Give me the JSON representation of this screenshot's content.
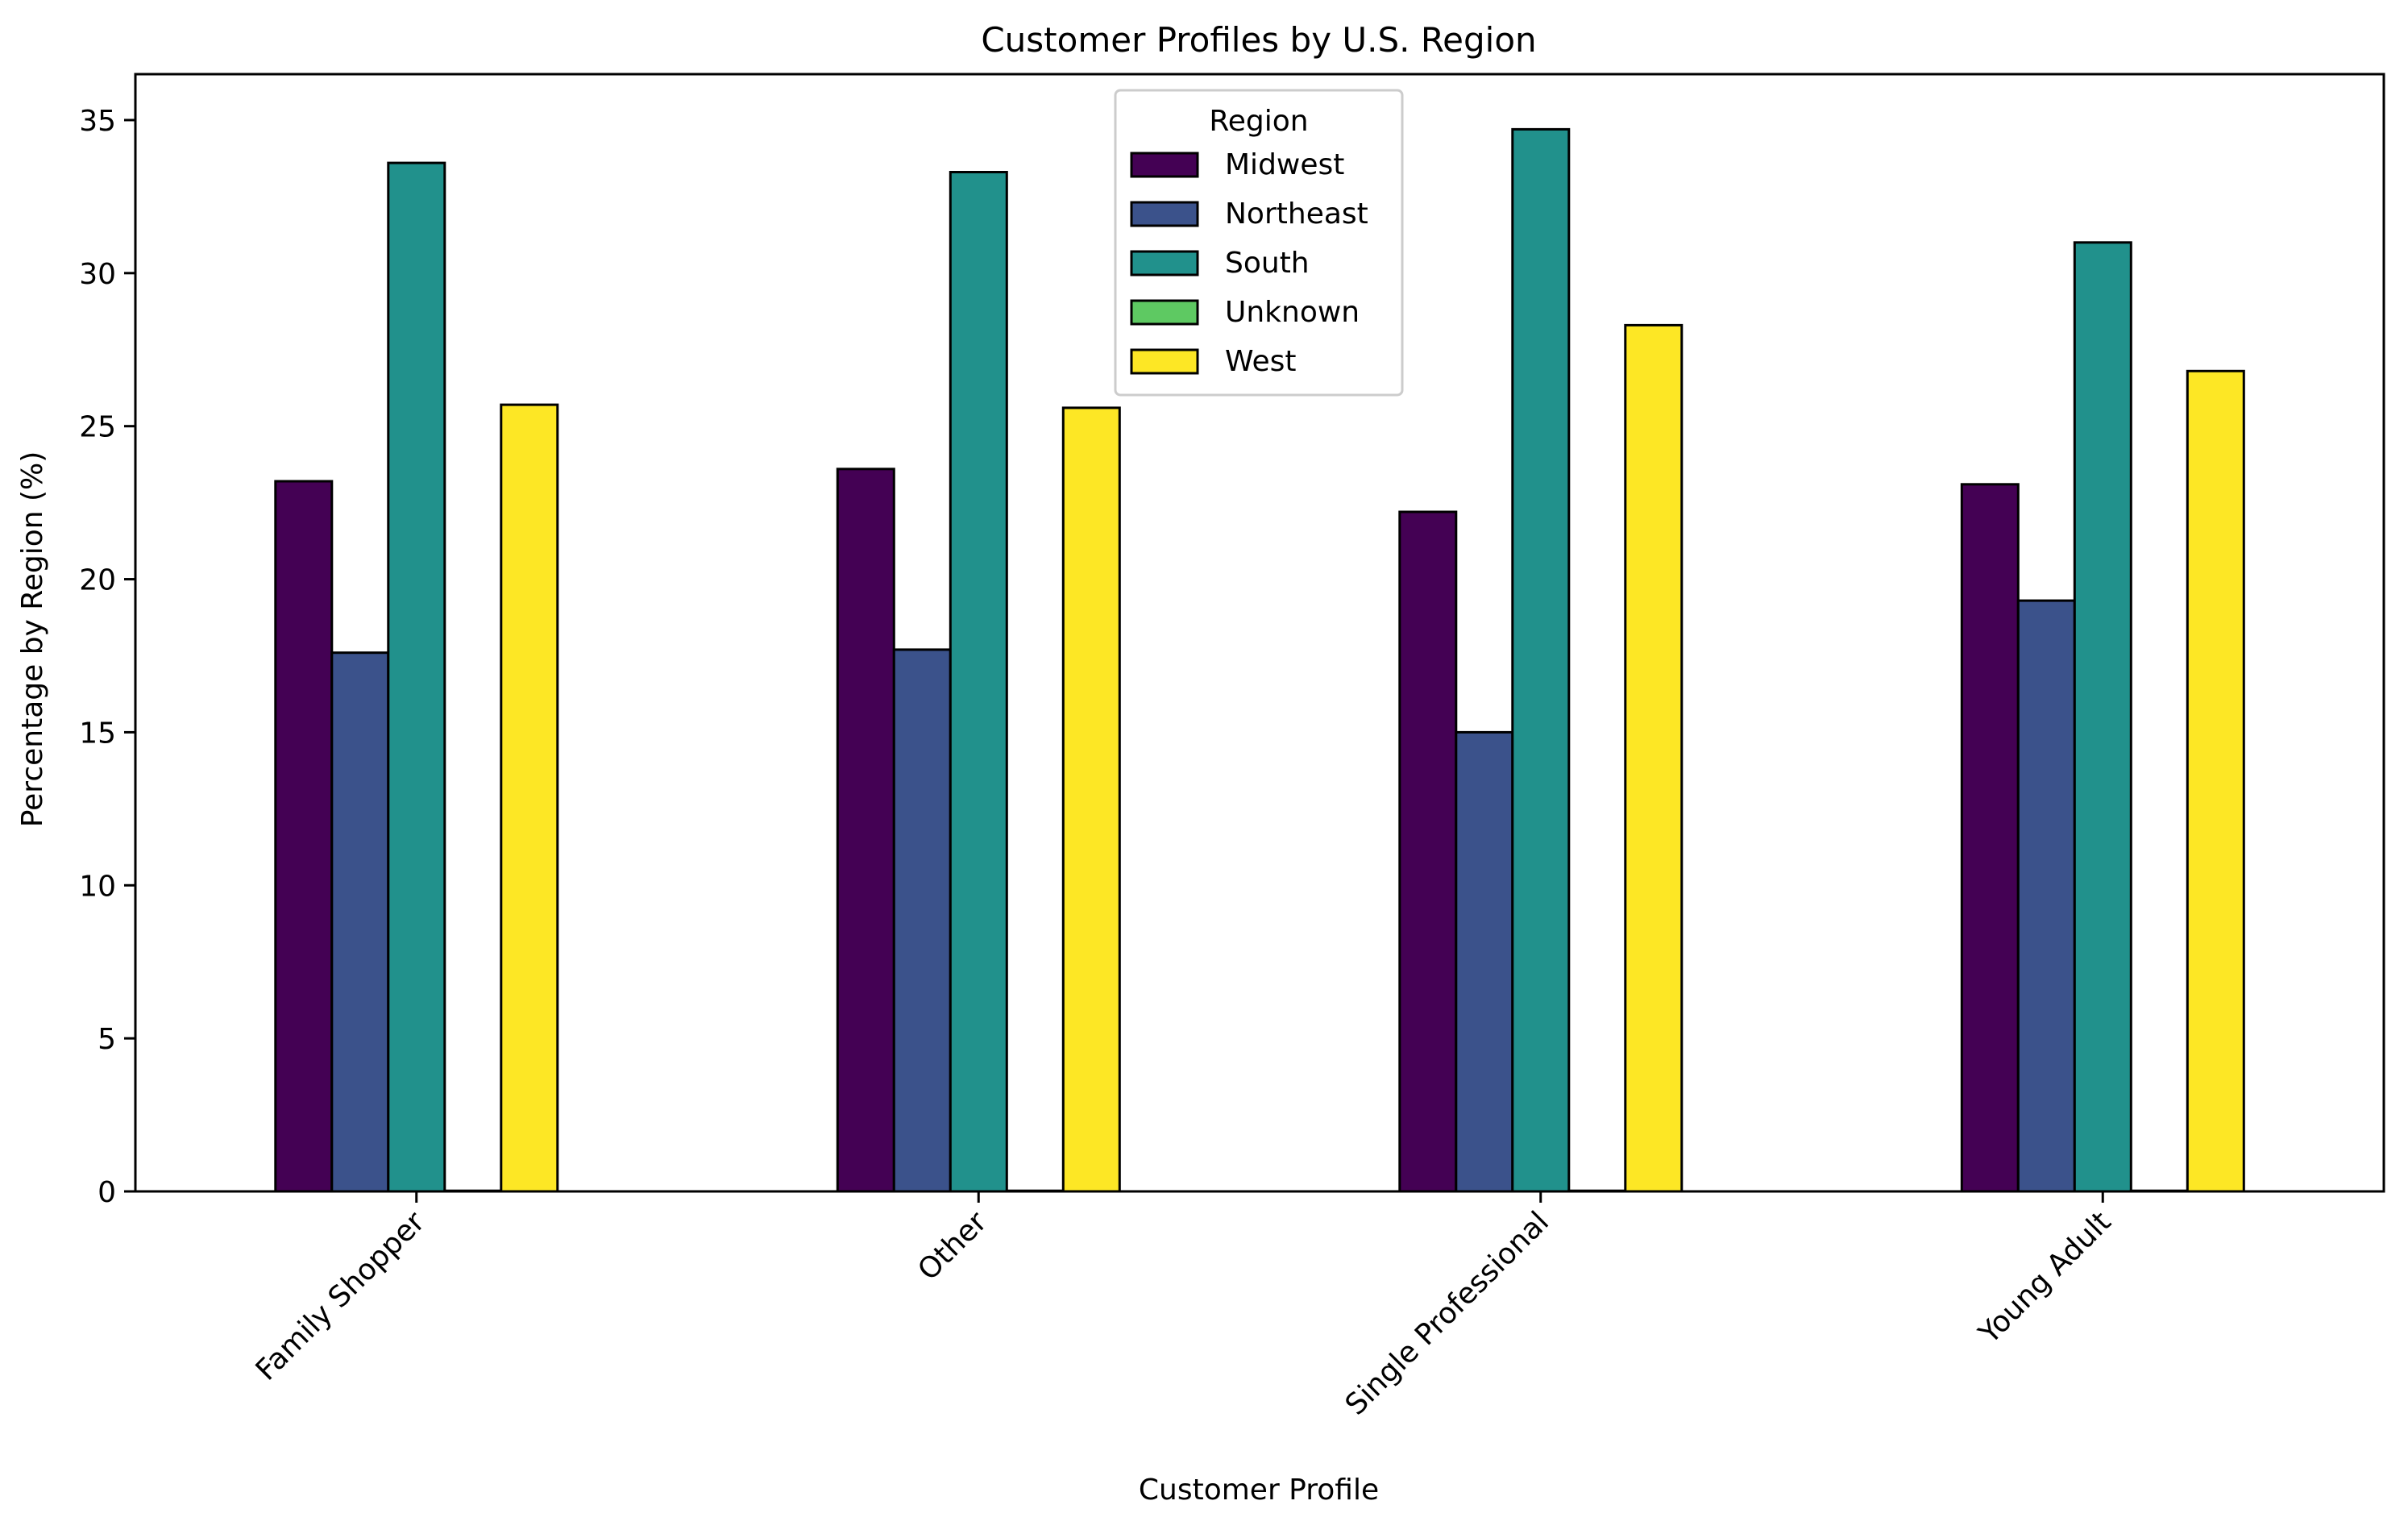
{
  "chart_data": {
    "type": "bar",
    "title": "Customer Profiles by U.S. Region",
    "xlabel": "Customer Profile",
    "ylabel": "Percentage by Region (%)",
    "ylim": [
      0,
      36.5
    ],
    "yticks": [
      0,
      5,
      10,
      15,
      20,
      25,
      30,
      35
    ],
    "grid": false,
    "categories": [
      "Family Shopper",
      "Other",
      "Single Professional",
      "Young Adult"
    ],
    "legend": {
      "title": "Region",
      "placement": "upper center"
    },
    "series": [
      {
        "name": "Midwest",
        "color": "#440154",
        "values": [
          23.2,
          23.6,
          22.2,
          23.1
        ]
      },
      {
        "name": "Northeast",
        "color": "#3b528b",
        "values": [
          17.6,
          17.7,
          15.0,
          19.3
        ]
      },
      {
        "name": "South",
        "color": "#21918c",
        "values": [
          33.6,
          33.3,
          34.7,
          31.0
        ]
      },
      {
        "name": "Unknown",
        "color": "#5ec962",
        "values": [
          0.02,
          0.02,
          0.02,
          0.02
        ]
      },
      {
        "name": "West",
        "color": "#fde725",
        "values": [
          25.7,
          25.6,
          28.3,
          26.8
        ]
      }
    ]
  }
}
